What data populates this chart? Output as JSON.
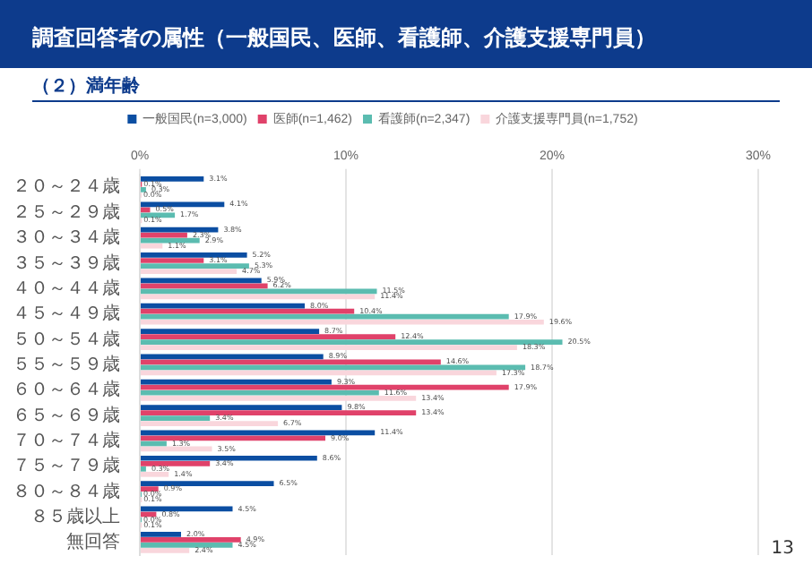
{
  "chart_data": {
    "type": "bar",
    "title": "調査回答者の属性（一般国民、医師、看護師、介護支援専門員）",
    "subtitle": "（２）満年齢",
    "orientation": "horizontal",
    "categories": [
      "２０～２４歳",
      "２５～２９歳",
      "３０～３４歳",
      "３５～３９歳",
      "４０～４４歳",
      "４５～４９歳",
      "５０～５４歳",
      "５５～５９歳",
      "６０～６４歳",
      "６５～６９歳",
      "７０～７４歳",
      "７５～７９歳",
      "８０～８４歳",
      "８５歳以上",
      "無回答"
    ],
    "series": [
      {
        "name": "一般国民(n=3,000)",
        "color": "#0b4ea2",
        "values": [
          3.1,
          4.1,
          3.8,
          5.2,
          5.9,
          8.0,
          8.7,
          8.9,
          9.3,
          9.8,
          11.4,
          8.6,
          6.5,
          4.5,
          2.0
        ],
        "value_labels": [
          "3.1%",
          "4.1%",
          "3.8%",
          "5.2%",
          "5.9%",
          "8.0%",
          "8.7%",
          "8.9%",
          "9.3%",
          "9.8%",
          "11.4%",
          "8.6%",
          "6.5%",
          "4.5%",
          "2.0%"
        ]
      },
      {
        "name": "医師(n=1,462)",
        "color": "#e0426a",
        "values": [
          0.1,
          0.5,
          2.3,
          3.1,
          6.2,
          10.4,
          12.4,
          14.6,
          17.9,
          13.4,
          9.0,
          3.4,
          0.9,
          0.8,
          4.9
        ],
        "value_labels": [
          "0.1%",
          "0.5%",
          "2.3%",
          "3.1%",
          "6.2%",
          "10.4%",
          "12.4%",
          "14.6%",
          "17.9%",
          "13.4%",
          "9.0%",
          "3.4%",
          "0.9%",
          "0.8%",
          "4.9%"
        ]
      },
      {
        "name": "看護師(n=2,347)",
        "color": "#5bbcb0",
        "values": [
          0.3,
          1.7,
          2.9,
          5.3,
          11.5,
          17.9,
          20.5,
          18.7,
          11.6,
          3.4,
          1.3,
          0.3,
          0.0,
          0.0,
          4.5
        ],
        "value_labels": [
          "0.3%",
          "1.7%",
          "2.9%",
          "5.3%",
          "11.5%",
          "17.9%",
          "20.5%",
          "18.7%",
          "11.6%",
          "3.4%",
          "1.3%",
          "0.3%",
          "0.0%",
          "0.0%",
          "4.5%"
        ]
      },
      {
        "name": "介護支援専門員(n=1,752)",
        "color": "#f9d6dc",
        "values": [
          0.0,
          0.1,
          1.1,
          4.7,
          11.4,
          19.6,
          18.3,
          17.3,
          13.4,
          6.7,
          3.5,
          1.4,
          0.1,
          0.1,
          2.4
        ],
        "value_labels": [
          "0.0%",
          "0.1%",
          "1.1%",
          "4.7%",
          "11.4%",
          "19.6%",
          "18.3%",
          "17.3%",
          "13.4%",
          "6.7%",
          "3.5%",
          "1.4%",
          "0.1%",
          "0.1%",
          "2.4%"
        ]
      }
    ],
    "xlim": [
      0,
      30
    ],
    "xticks": [
      {
        "value": 0,
        "label": "0%"
      },
      {
        "value": 10,
        "label": "10%"
      },
      {
        "value": 20,
        "label": "20%"
      },
      {
        "value": 30,
        "label": "30%"
      }
    ],
    "grid": "x",
    "legend": "top",
    "annotations": [
      "13"
    ]
  }
}
